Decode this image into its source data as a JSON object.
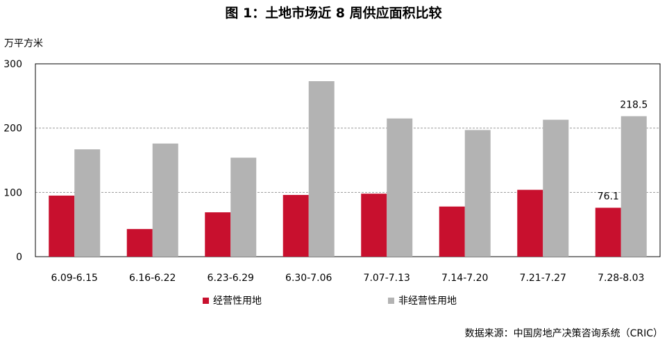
{
  "header": {
    "title": "图 1：土地市场近 8 周供应面积比较",
    "unit": "万平方米"
  },
  "footer": {
    "source": "数据来源：中国房地产决策咨询系统（CRIC）"
  },
  "colors": {
    "series1": "#c8102e",
    "series2": "#b3b3b3",
    "grid": "#9a9a9a"
  },
  "chart_data": {
    "type": "bar",
    "categories": [
      "6.09-6.15",
      "6.16-6.22",
      "6.23-6.29",
      "6.30-7.06",
      "7.07-7.13",
      "7.14-7.20",
      "7.21-7.27",
      "7.28-8.03"
    ],
    "series": [
      {
        "name": "经营性用地",
        "values": [
          95,
          43,
          69,
          96,
          98,
          78,
          104,
          76.1
        ]
      },
      {
        "name": "非经营性用地",
        "values": [
          167,
          176,
          154,
          273,
          215,
          197,
          213,
          218.5
        ]
      }
    ],
    "data_labels": [
      {
        "series": 0,
        "index": 7,
        "text": "76.1"
      },
      {
        "series": 1,
        "index": 7,
        "text": "218.5"
      }
    ],
    "ylim": [
      0,
      300
    ],
    "yticks": [
      0,
      100,
      200,
      300
    ],
    "ytick_labels": [
      "0",
      "100",
      "200",
      "300"
    ],
    "grid": true,
    "legend_position": "bottom"
  }
}
